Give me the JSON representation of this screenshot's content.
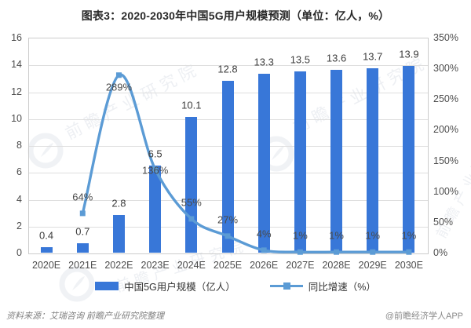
{
  "chart_data": {
    "type": "combo",
    "title": "图表3：2020-2030年中国5G用户规模预测（单位：亿人，%）",
    "categories": [
      "2020E",
      "2021E",
      "2022E",
      "2023E",
      "2024E",
      "2025E",
      "2026E",
      "2027E",
      "2028E",
      "2029E",
      "2030E"
    ],
    "series": [
      {
        "name": "中国5G用户规模（亿人）",
        "type": "bar",
        "y_axis": "left",
        "color": "#3877d8",
        "values": [
          0.4,
          0.7,
          2.8,
          6.5,
          10.1,
          12.8,
          13.3,
          13.5,
          13.6,
          13.7,
          13.9
        ],
        "labels": [
          "0.4",
          "0.7",
          "2.8",
          "6.5",
          "10.1",
          "12.8",
          "13.3",
          "13.5",
          "13.6",
          "13.7",
          "13.9"
        ]
      },
      {
        "name": "同比增速（%）",
        "type": "line",
        "y_axis": "right",
        "color": "#5b9bd5",
        "values": [
          null,
          64,
          289,
          136,
          55,
          27,
          4,
          1,
          1,
          1,
          1
        ],
        "labels": [
          "",
          "64%",
          "289%",
          "136%",
          "55%",
          "27%",
          "4%",
          "1%",
          "1%",
          "1%",
          "1%"
        ],
        "label_placement": [
          "",
          "above",
          "below",
          "on",
          "above",
          "above",
          "above",
          "above",
          "above",
          "above",
          "above"
        ]
      }
    ],
    "left_axis": {
      "min": 0,
      "max": 16,
      "tick_step": 2,
      "ticks": [
        "16",
        "14",
        "12",
        "10",
        "8",
        "6",
        "4",
        "2",
        "0"
      ]
    },
    "right_axis": {
      "min": 0,
      "max": 350,
      "ticks": [
        "350%",
        "300%",
        "250%",
        "200%",
        "150%",
        "100%",
        "50%",
        "0%"
      ]
    },
    "grid": true,
    "legend_position": "bottom"
  },
  "source_note": "资料来源：艾瑞咨询 前瞻产业研究院整理",
  "credit": "@前瞻经济学人APP",
  "watermark_text": "前瞻产业研究院"
}
